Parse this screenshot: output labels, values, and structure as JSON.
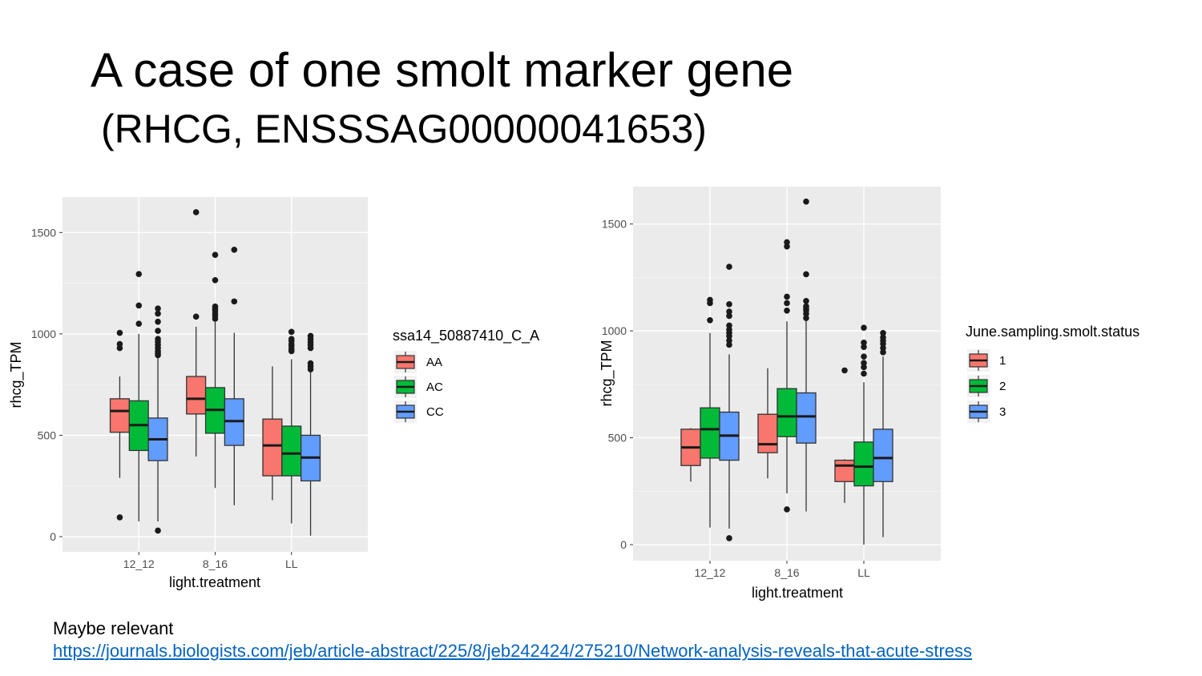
{
  "slide": {
    "title": "A case of one smolt marker gene",
    "subtitle": "(RHCG, ENSSSAG00000041653)",
    "note_label": "Maybe relevant",
    "note_link": "https://journals.biologists.com/jeb/article-abstract/225/8/jeb242424/275210/Network-analysis-reveals-that-acute-stress"
  },
  "chart_data": [
    {
      "type": "boxplot",
      "xlabel": "light.treatment",
      "ylabel": "rhcg_TPM",
      "categories": [
        "12_12",
        "8_16",
        "LL"
      ],
      "yticks": [
        0,
        500,
        1000,
        1500
      ],
      "ylim": [
        -75,
        1675
      ],
      "grid": true,
      "legend": {
        "title": "ssa14_50887410_C_A",
        "position": "right"
      },
      "series": [
        {
          "name": "AA",
          "color": "#F8766D",
          "boxes": [
            {
              "category": "12_12",
              "min": 290,
              "q1": 515,
              "median": 620,
              "q3": 680,
              "max": 790,
              "outliers": [
                95,
                930,
                950,
                1005
              ]
            },
            {
              "category": "8_16",
              "min": 395,
              "q1": 605,
              "median": 680,
              "q3": 790,
              "max": 1035,
              "outliers": [
                1085,
                1600
              ]
            },
            {
              "category": "LL",
              "min": 180,
              "q1": 300,
              "median": 450,
              "q3": 580,
              "max": 840,
              "outliers": []
            }
          ]
        },
        {
          "name": "AC",
          "color": "#00BA38",
          "boxes": [
            {
              "category": "12_12",
              "min": 75,
              "q1": 425,
              "median": 550,
              "q3": 670,
              "max": 1000,
              "outliers": [
                1050,
                1140,
                1295
              ]
            },
            {
              "category": "8_16",
              "min": 240,
              "q1": 510,
              "median": 625,
              "q3": 735,
              "max": 1060,
              "outliers": [
                1075,
                1090,
                1100,
                1115,
                1125,
                1135,
                1265,
                1390
              ]
            },
            {
              "category": "LL",
              "min": 65,
              "q1": 300,
              "median": 410,
              "q3": 545,
              "max": 875,
              "outliers": [
                915,
                925,
                940,
                950,
                965,
                975,
                1010
              ]
            }
          ]
        },
        {
          "name": "CC",
          "color": "#619CFF",
          "boxes": [
            {
              "category": "12_12",
              "min": 75,
              "q1": 375,
              "median": 480,
              "q3": 585,
              "max": 880,
              "outliers": [
                30,
                895,
                905,
                915,
                930,
                945,
                960,
                975,
                1015,
                1060,
                1100,
                1125
              ]
            },
            {
              "category": "8_16",
              "min": 155,
              "q1": 450,
              "median": 570,
              "q3": 680,
              "max": 1005,
              "outliers": [
                1160,
                1415
              ]
            },
            {
              "category": "LL",
              "min": 5,
              "q1": 275,
              "median": 390,
              "q3": 500,
              "max": 810,
              "outliers": [
                825,
                840,
                855,
                930,
                945,
                960,
                975,
                990
              ]
            }
          ]
        }
      ]
    },
    {
      "type": "boxplot",
      "xlabel": "light.treatment",
      "ylabel": "rhcg_TPM",
      "categories": [
        "12_12",
        "8_16",
        "LL"
      ],
      "yticks": [
        0,
        500,
        1000,
        1500
      ],
      "ylim": [
        -75,
        1675
      ],
      "grid": true,
      "legend": {
        "title": "June.sampling.smolt.status",
        "position": "right"
      },
      "series": [
        {
          "name": "1",
          "color": "#F8766D",
          "boxes": [
            {
              "category": "12_12",
              "min": 295,
              "q1": 370,
              "median": 455,
              "q3": 540,
              "max": 545,
              "outliers": []
            },
            {
              "category": "8_16",
              "min": 310,
              "q1": 430,
              "median": 470,
              "q3": 610,
              "max": 825,
              "outliers": []
            },
            {
              "category": "LL",
              "min": 195,
              "q1": 295,
              "median": 370,
              "q3": 395,
              "max": 400,
              "outliers": [
                815
              ]
            }
          ]
        },
        {
          "name": "2",
          "color": "#00BA38",
          "boxes": [
            {
              "category": "12_12",
              "min": 80,
              "q1": 405,
              "median": 540,
              "q3": 640,
              "max": 990,
              "outliers": [
                1050,
                1130,
                1145
              ]
            },
            {
              "category": "8_16",
              "min": 240,
              "q1": 505,
              "median": 600,
              "q3": 730,
              "max": 1045,
              "outliers": [
                165,
                1095,
                1130,
                1160,
                1395,
                1415
              ]
            },
            {
              "category": "LL",
              "min": 0,
              "q1": 275,
              "median": 365,
              "q3": 480,
              "max": 760,
              "outliers": [
                800,
                830,
                850,
                880,
                925,
                945,
                1015
              ]
            }
          ]
        },
        {
          "name": "3",
          "color": "#619CFF",
          "boxes": [
            {
              "category": "12_12",
              "min": 75,
              "q1": 395,
              "median": 510,
              "q3": 620,
              "max": 890,
              "outliers": [
                30,
                935,
                955,
                975,
                990,
                1005,
                1025,
                1070,
                1090,
                1125,
                1300
              ]
            },
            {
              "category": "8_16",
              "min": 155,
              "q1": 475,
              "median": 600,
              "q3": 710,
              "max": 1050,
              "outliers": [
                1060,
                1080,
                1095,
                1105,
                1115,
                1140,
                1265,
                1605
              ]
            },
            {
              "category": "LL",
              "min": 35,
              "q1": 295,
              "median": 405,
              "q3": 540,
              "max": 880,
              "outliers": [
                900,
                920,
                940,
                955,
                970,
                990
              ]
            }
          ]
        }
      ]
    }
  ]
}
